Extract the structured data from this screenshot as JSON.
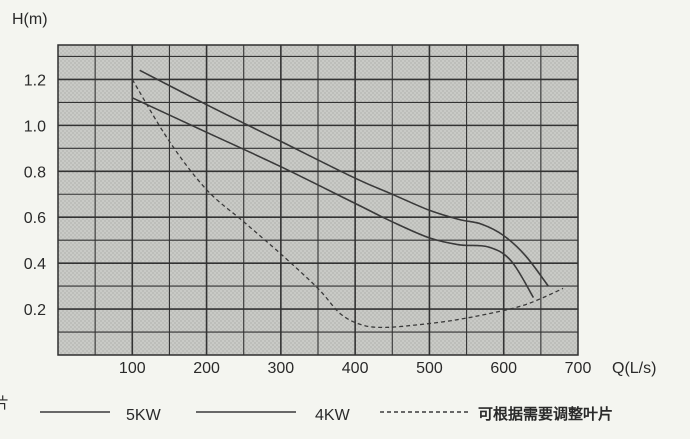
{
  "chart_data": {
    "type": "line",
    "title": "",
    "ylabel": "H(m)",
    "xlabel": "Q(L/s)",
    "xlim": [
      0,
      700
    ],
    "ylim": [
      0,
      1.35
    ],
    "x_ticks": [
      100,
      200,
      300,
      400,
      500,
      600,
      700
    ],
    "y_ticks": [
      0.2,
      0.4,
      0.6,
      0.8,
      1.0,
      1.2
    ],
    "y_tick_labels": [
      "0.2",
      "0.4",
      "0.6",
      "0.8",
      "1.0",
      "1.2"
    ],
    "grid": true,
    "legend_position": "bottom",
    "left_edge_fragment": "片",
    "series": [
      {
        "name": "5KW",
        "style": "solid",
        "x": [
          110,
          200,
          300,
          400,
          450,
          500,
          540,
          570,
          600,
          630,
          660
        ],
        "y": [
          1.24,
          1.09,
          0.93,
          0.77,
          0.7,
          0.63,
          0.59,
          0.57,
          0.52,
          0.43,
          0.3
        ]
      },
      {
        "name": "4KW",
        "style": "solid",
        "x": [
          100,
          200,
          300,
          400,
          450,
          500,
          540,
          580,
          610,
          640
        ],
        "y": [
          1.12,
          0.97,
          0.82,
          0.66,
          0.58,
          0.51,
          0.48,
          0.47,
          0.41,
          0.25
        ]
      },
      {
        "name": "可根据需要调整叶片",
        "style": "dashed",
        "x": [
          100,
          150,
          200,
          250,
          300,
          350,
          380,
          410,
          440,
          480,
          530,
          580,
          630,
          680
        ],
        "y": [
          1.2,
          0.93,
          0.72,
          0.58,
          0.44,
          0.29,
          0.18,
          0.13,
          0.12,
          0.13,
          0.15,
          0.18,
          0.22,
          0.29
        ]
      }
    ]
  }
}
